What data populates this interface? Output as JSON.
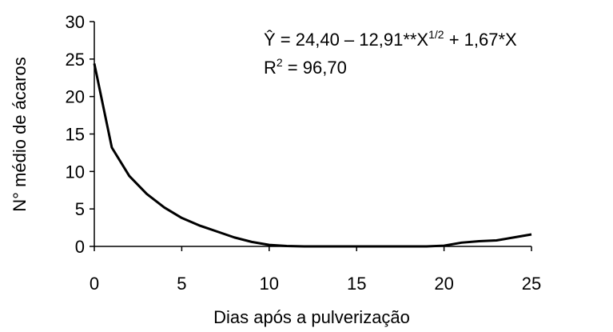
{
  "chart_data": {
    "type": "line",
    "x_label": "Dias após a pulverização",
    "y_label": "N° médio de ácaros",
    "annotations": [
      {
        "parts": [
          "Ŷ = 24,40 – 12,91**X",
          "1/2",
          " + 1,67*X"
        ]
      },
      {
        "parts": [
          "R",
          "2",
          " = 96,70"
        ]
      }
    ],
    "x": [
      0,
      1,
      2,
      3,
      4,
      5,
      6,
      7,
      8,
      9,
      10,
      11,
      12,
      13,
      14,
      15,
      16,
      17,
      18,
      19,
      20,
      21,
      22,
      23,
      24,
      25
    ],
    "series": [
      {
        "color": "#000000",
        "values": [
          24.4,
          13.2,
          9.4,
          7.0,
          5.2,
          3.8,
          2.8,
          2.0,
          1.2,
          0.6,
          0.2,
          0.05,
          0,
          0,
          0,
          0,
          0,
          0,
          0,
          0,
          0.1,
          0.5,
          0.7,
          0.8,
          1.2,
          1.6
        ]
      }
    ],
    "xlim": [
      0,
      25
    ],
    "xticks": [
      0,
      5,
      10,
      15,
      20,
      25
    ],
    "ylim": [
      0,
      30
    ],
    "yticks": [
      0,
      5,
      10,
      15,
      20,
      25,
      30
    ]
  }
}
